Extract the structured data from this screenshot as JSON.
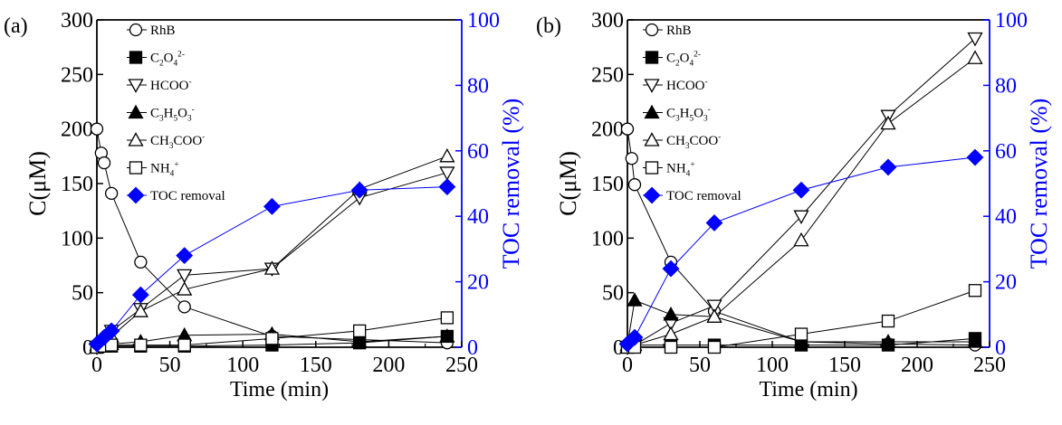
{
  "colors": {
    "axis": "#000000",
    "toc": "#0000ff",
    "background": "#ffffff"
  },
  "chart_data": [
    {
      "type": "line",
      "panel_label": "(a)",
      "xlabel": "Time (min)",
      "ylabel": "C(μM)",
      "y2label": "TOC removal (%)",
      "xlim": [
        0,
        250
      ],
      "ylim": [
        0,
        300
      ],
      "y2lim": [
        0,
        100
      ],
      "xticks": [
        0,
        50,
        100,
        150,
        200,
        250
      ],
      "yticks": [
        0,
        50,
        100,
        150,
        200,
        250,
        300
      ],
      "y2ticks": [
        0,
        20,
        40,
        60,
        80,
        100
      ],
      "legend_position": "top-left inside plot",
      "series": [
        {
          "name": "RhB",
          "marker": "circle-open",
          "axis": "left",
          "x": [
            0,
            3,
            5,
            10,
            30,
            60,
            120,
            180,
            240
          ],
          "y": [
            200,
            178,
            169,
            141,
            78,
            37,
            10,
            7,
            4
          ]
        },
        {
          "name": "C2O4 2-",
          "legend_parts": [
            [
              "C",
              ""
            ],
            [
              "2",
              "sub"
            ],
            [
              "O",
              ""
            ],
            [
              "4",
              "sub"
            ],
            [
              "2-",
              "sup"
            ]
          ],
          "marker": "square-filled",
          "axis": "left",
          "x": [
            0,
            5,
            10,
            30,
            60,
            120,
            180,
            240
          ],
          "y": [
            0,
            1,
            1,
            1,
            1,
            2,
            4,
            10
          ]
        },
        {
          "name": "HCOO-",
          "legend_parts": [
            [
              "HCOO",
              ""
            ],
            [
              "-",
              "sup"
            ]
          ],
          "marker": "triangle-down-open",
          "axis": "left",
          "x": [
            0,
            5,
            10,
            30,
            60,
            120,
            180,
            240
          ],
          "y": [
            0,
            5,
            15,
            35,
            66,
            72,
            137,
            160
          ]
        },
        {
          "name": "C3H5O3-",
          "legend_parts": [
            [
              "C",
              ""
            ],
            [
              "3",
              "sub"
            ],
            [
              "H",
              ""
            ],
            [
              "5",
              "sub"
            ],
            [
              "O",
              ""
            ],
            [
              "3",
              "sub"
            ],
            [
              "-",
              "sup"
            ]
          ],
          "marker": "triangle-up-filled",
          "axis": "left",
          "x": [
            0,
            5,
            10,
            30,
            60,
            120,
            180,
            240
          ],
          "y": [
            2,
            2,
            3,
            5,
            11,
            12,
            5,
            10
          ]
        },
        {
          "name": "CH3COO-",
          "legend_parts": [
            [
              "CH",
              ""
            ],
            [
              "3",
              "sub"
            ],
            [
              "COO",
              ""
            ],
            [
              "-",
              "sup"
            ]
          ],
          "marker": "triangle-up-open",
          "axis": "left",
          "x": [
            0,
            5,
            10,
            30,
            60,
            120,
            180,
            240
          ],
          "y": [
            0,
            4,
            10,
            33,
            53,
            72,
            145,
            175
          ]
        },
        {
          "name": "NH4+",
          "legend_parts": [
            [
              "NH",
              ""
            ],
            [
              "4",
              "sub"
            ],
            [
              "+",
              "sup"
            ]
          ],
          "marker": "square-open",
          "axis": "left",
          "x": [
            0,
            5,
            10,
            30,
            60,
            120,
            180,
            240
          ],
          "y": [
            0,
            1,
            2,
            2,
            2,
            8,
            15,
            27
          ]
        },
        {
          "name": "TOC removal",
          "marker": "diamond-filled",
          "axis": "right",
          "color": "#0000ff",
          "x": [
            0,
            5,
            10,
            30,
            60,
            120,
            180,
            240
          ],
          "y": [
            1,
            3,
            5,
            16,
            28,
            43,
            48,
            49
          ]
        }
      ]
    },
    {
      "type": "line",
      "panel_label": "(b)",
      "xlabel": "Time (min)",
      "ylabel": "C(μM)",
      "y2label": "TOC removal (%)",
      "xlim": [
        0,
        250
      ],
      "ylim": [
        0,
        300
      ],
      "y2lim": [
        0,
        100
      ],
      "xticks": [
        0,
        50,
        100,
        150,
        200,
        250
      ],
      "yticks": [
        0,
        50,
        100,
        150,
        200,
        250,
        300
      ],
      "y2ticks": [
        0,
        20,
        40,
        60,
        80,
        100
      ],
      "legend_position": "top-left inside plot",
      "series": [
        {
          "name": "RhB",
          "marker": "circle-open",
          "axis": "left",
          "x": [
            0,
            3,
            5,
            30,
            60,
            120,
            180,
            240
          ],
          "y": [
            200,
            173,
            149,
            78,
            33,
            5,
            3,
            2
          ]
        },
        {
          "name": "C2O4 2-",
          "legend_parts": [
            [
              "C",
              ""
            ],
            [
              "2",
              "sub"
            ],
            [
              "O",
              ""
            ],
            [
              "4",
              "sub"
            ],
            [
              "2-",
              "sup"
            ]
          ],
          "marker": "square-filled",
          "axis": "left",
          "x": [
            0,
            5,
            30,
            60,
            120,
            180,
            240
          ],
          "y": [
            0,
            2,
            2,
            2,
            2,
            2,
            8
          ]
        },
        {
          "name": "HCOO-",
          "legend_parts": [
            [
              "HCOO",
              ""
            ],
            [
              "-",
              "sup"
            ]
          ],
          "marker": "triangle-down-open",
          "axis": "left",
          "x": [
            0,
            5,
            30,
            60,
            120,
            180,
            240
          ],
          "y": [
            0,
            2,
            22,
            38,
            120,
            212,
            283
          ]
        },
        {
          "name": "C3H5O3-",
          "legend_parts": [
            [
              "C",
              ""
            ],
            [
              "3",
              "sub"
            ],
            [
              "H",
              ""
            ],
            [
              "5",
              "sub"
            ],
            [
              "O",
              ""
            ],
            [
              "3",
              "sub"
            ],
            [
              "-",
              "sup"
            ]
          ],
          "marker": "triangle-up-filled",
          "axis": "left",
          "x": [
            0,
            5,
            30,
            60,
            120,
            180,
            240
          ],
          "y": [
            2,
            43,
            30,
            28,
            5,
            5,
            5
          ]
        },
        {
          "name": "CH3COO-",
          "legend_parts": [
            [
              "CH",
              ""
            ],
            [
              "3",
              "sub"
            ],
            [
              "COO",
              ""
            ],
            [
              "-",
              "sup"
            ]
          ],
          "marker": "triangle-up-open",
          "axis": "left",
          "x": [
            0,
            5,
            30,
            60,
            120,
            180,
            240
          ],
          "y": [
            0,
            2,
            12,
            28,
            98,
            205,
            265
          ]
        },
        {
          "name": "NH4+",
          "legend_parts": [
            [
              "NH",
              ""
            ],
            [
              "4",
              "sub"
            ],
            [
              "+",
              "sup"
            ]
          ],
          "marker": "square-open",
          "axis": "left",
          "x": [
            0,
            5,
            30,
            60,
            120,
            180,
            240
          ],
          "y": [
            0,
            0,
            0,
            0,
            12,
            24,
            52
          ]
        },
        {
          "name": "TOC removal",
          "marker": "diamond-filled",
          "axis": "right",
          "color": "#0000ff",
          "x": [
            0,
            5,
            30,
            60,
            120,
            180,
            240
          ],
          "y": [
            1,
            3,
            24,
            38,
            48,
            55,
            58
          ]
        }
      ]
    }
  ]
}
